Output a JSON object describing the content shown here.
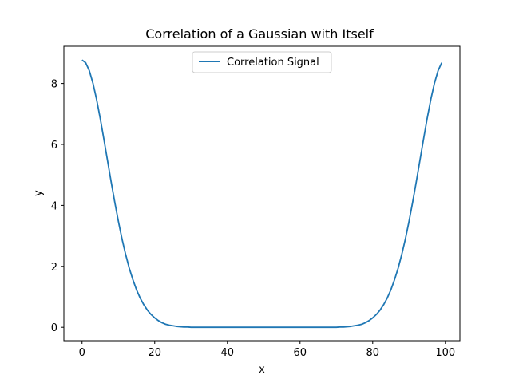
{
  "chart_data": {
    "type": "line",
    "title": "Correlation of a Gaussian with Itself",
    "xlabel": "x",
    "ylabel": "y",
    "xlim": [
      -5,
      104
    ],
    "ylim": [
      -0.44,
      9.22
    ],
    "xticks": [
      0,
      20,
      40,
      60,
      80,
      100
    ],
    "yticks": [
      0,
      2,
      4,
      6,
      8
    ],
    "grid": false,
    "legend_position": "top-center",
    "series": [
      {
        "name": "Correlation Signal",
        "color": "#1f77b4",
        "x": [
          0,
          1,
          2,
          3,
          4,
          5,
          6,
          7,
          8,
          9,
          10,
          11,
          12,
          13,
          14,
          15,
          16,
          17,
          18,
          19,
          20,
          21,
          22,
          23,
          24,
          25,
          26,
          27,
          28,
          29,
          30,
          31,
          32,
          33,
          34,
          35,
          36,
          37,
          38,
          39,
          40,
          41,
          42,
          43,
          44,
          45,
          46,
          47,
          48,
          49,
          50,
          51,
          52,
          53,
          54,
          55,
          56,
          57,
          58,
          59,
          60,
          61,
          62,
          63,
          64,
          65,
          66,
          67,
          68,
          69,
          70,
          71,
          72,
          73,
          74,
          75,
          76,
          77,
          78,
          79,
          80,
          81,
          82,
          83,
          84,
          85,
          86,
          87,
          88,
          89,
          90,
          91,
          92,
          93,
          94,
          95,
          96,
          97,
          98,
          99
        ],
        "y": [
          8.77,
          8.68,
          8.42,
          8.01,
          7.48,
          6.86,
          6.18,
          5.48,
          4.78,
          4.11,
          3.48,
          2.9,
          2.39,
          1.94,
          1.56,
          1.23,
          0.96,
          0.74,
          0.56,
          0.42,
          0.31,
          0.22,
          0.15,
          0.1,
          0.07,
          0.05,
          0.03,
          0.02,
          0.01,
          0.01,
          0.0,
          0.0,
          0.0,
          0.0,
          0.0,
          0.0,
          0.0,
          0.0,
          0.0,
          0.0,
          0.0,
          0.0,
          0.0,
          0.0,
          0.0,
          0.0,
          0.0,
          0.0,
          0.0,
          0.0,
          0.0,
          0.0,
          0.0,
          0.0,
          0.0,
          0.0,
          0.0,
          0.0,
          0.0,
          0.0,
          0.0,
          0.0,
          0.0,
          0.0,
          0.0,
          0.0,
          0.0,
          0.0,
          0.0,
          0.0,
          0.0,
          0.01,
          0.01,
          0.02,
          0.03,
          0.05,
          0.07,
          0.1,
          0.15,
          0.22,
          0.31,
          0.42,
          0.56,
          0.74,
          0.96,
          1.23,
          1.56,
          1.94,
          2.39,
          2.9,
          3.48,
          4.11,
          4.78,
          5.48,
          6.18,
          6.86,
          7.48,
          8.01,
          8.42,
          8.68
        ]
      }
    ]
  }
}
